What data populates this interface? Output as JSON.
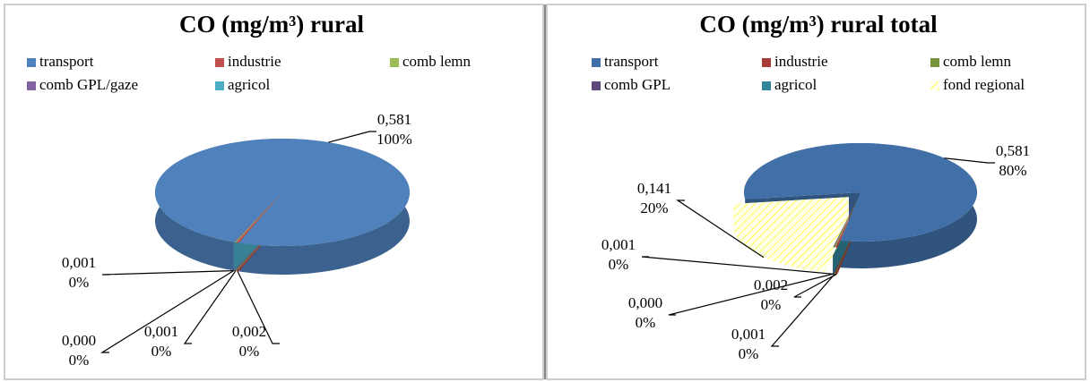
{
  "chart_data": [
    {
      "type": "pie3d",
      "title": "CO (mg/m³) rural",
      "categories": [
        "transport",
        "industrie",
        "comb lemn",
        "comb GPL/gaze",
        "agricol"
      ],
      "values": [
        0.581,
        0.002,
        0.001,
        0.001,
        0.0
      ],
      "value_labels": [
        "0,581",
        "0,002",
        "0,001",
        "0,001",
        "0,000"
      ],
      "percent_labels": [
        "100%",
        "0%",
        "0%",
        "0%",
        "0%"
      ],
      "colors": [
        "#4f81bd",
        "#c0504d",
        "#9bbb59",
        "#8064a2",
        "#4bacc6"
      ],
      "legend": "top"
    },
    {
      "type": "pie3d",
      "title": "CO (mg/m³) rural total",
      "categories": [
        "transport",
        "industrie",
        "comb lemn",
        "comb GPL",
        "agricol",
        "fond regional"
      ],
      "values": [
        0.581,
        0.002,
        0.001,
        0.001,
        0.0,
        0.141
      ],
      "value_labels": [
        "0,581",
        "0,002",
        "0,001",
        "0,001",
        "0,000",
        "0,141"
      ],
      "percent_labels": [
        "80%",
        "0%",
        "0%",
        "0%",
        "0%",
        "20%"
      ],
      "colors": [
        "#4170a8",
        "#a63b38",
        "#77933c",
        "#5f4a7b",
        "#31849b",
        "#ffff66"
      ],
      "hatched": [
        false,
        false,
        false,
        false,
        false,
        true
      ],
      "legend": "top"
    }
  ]
}
